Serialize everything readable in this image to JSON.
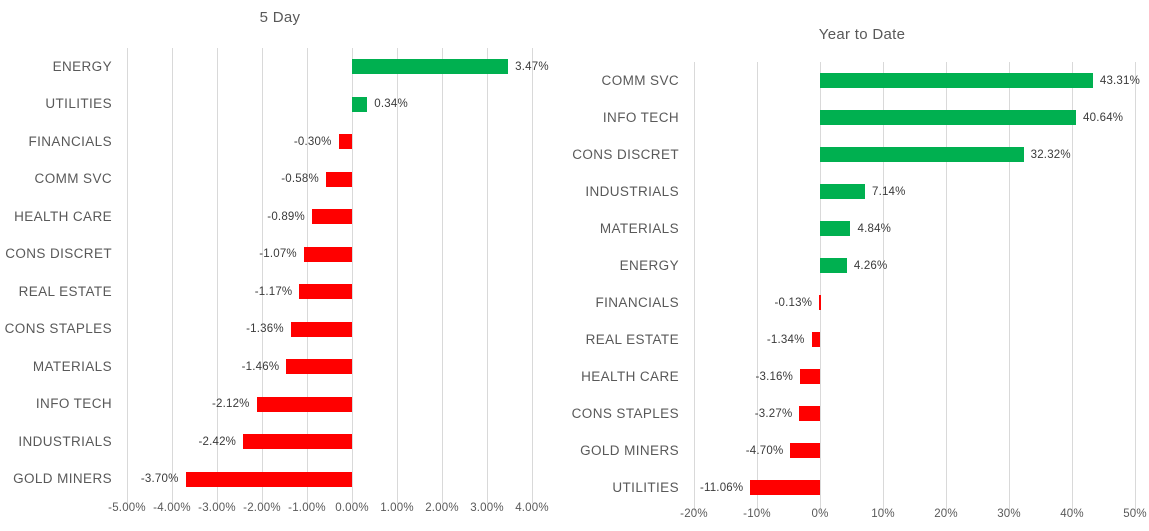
{
  "page": {
    "background": "#ffffff"
  },
  "colors": {
    "positive_bar": "#00B050",
    "negative_bar": "#FF0000",
    "gridline": "#D9D9D9",
    "axis_text": "#595959",
    "category_text": "#595959",
    "value_text": "#3a3a3a",
    "title_text": "#595959"
  },
  "chart_data": [
    {
      "type": "bar",
      "orientation": "horizontal",
      "title": "5 Day",
      "categories": [
        "ENERGY",
        "UTILITIES",
        "FINANCIALS",
        "COMM SVC",
        "HEALTH CARE",
        "CONS DISCRET",
        "REAL ESTATE",
        "CONS STAPLES",
        "MATERIALS",
        "INFO TECH",
        "INDUSTRIALS",
        "GOLD MINERS"
      ],
      "values": [
        3.47,
        0.34,
        -0.3,
        -0.58,
        -0.89,
        -1.07,
        -1.17,
        -1.36,
        -1.46,
        -2.12,
        -2.42,
        -3.7
      ],
      "value_labels": [
        "3.47%",
        "0.34%",
        "-0.30%",
        "-0.58%",
        "-0.89%",
        "-1.07%",
        "-1.17%",
        "-1.36%",
        "-1.46%",
        "-2.12%",
        "-2.42%",
        "-3.70%"
      ],
      "xlim": [
        -5,
        4
      ],
      "tick_step": 1,
      "tick_labels": [
        "-5.00%",
        "-4.00%",
        "-3.00%",
        "-2.00%",
        "-1.00%",
        "0.00%",
        "1.00%",
        "2.00%",
        "3.00%",
        "4.00%"
      ],
      "grid": true,
      "legend": "none",
      "bar_color_rule": "green-if-positive-red-if-negative"
    },
    {
      "type": "bar",
      "orientation": "horizontal",
      "title": "Year to Date",
      "categories": [
        "COMM SVC",
        "INFO TECH",
        "CONS DISCRET",
        "INDUSTRIALS",
        "MATERIALS",
        "ENERGY",
        "FINANCIALS",
        "REAL ESTATE",
        "HEALTH CARE",
        "CONS STAPLES",
        "GOLD MINERS",
        "UTILITIES"
      ],
      "values": [
        43.31,
        40.64,
        32.32,
        7.14,
        4.84,
        4.26,
        -0.13,
        -1.34,
        -3.16,
        -3.27,
        -4.7,
        -11.06
      ],
      "value_labels": [
        "43.31%",
        "40.64%",
        "32.32%",
        "7.14%",
        "4.84%",
        "4.26%",
        "-0.13%",
        "-1.34%",
        "-3.16%",
        "-3.27%",
        "-4.70%",
        "-11.06%"
      ],
      "xlim": [
        -20,
        50
      ],
      "tick_step": 10,
      "tick_labels": [
        "-20%",
        "-10%",
        "0%",
        "10%",
        "20%",
        "30%",
        "40%",
        "50%"
      ],
      "grid": true,
      "legend": "none",
      "bar_color_rule": "green-if-positive-red-if-negative"
    }
  ]
}
